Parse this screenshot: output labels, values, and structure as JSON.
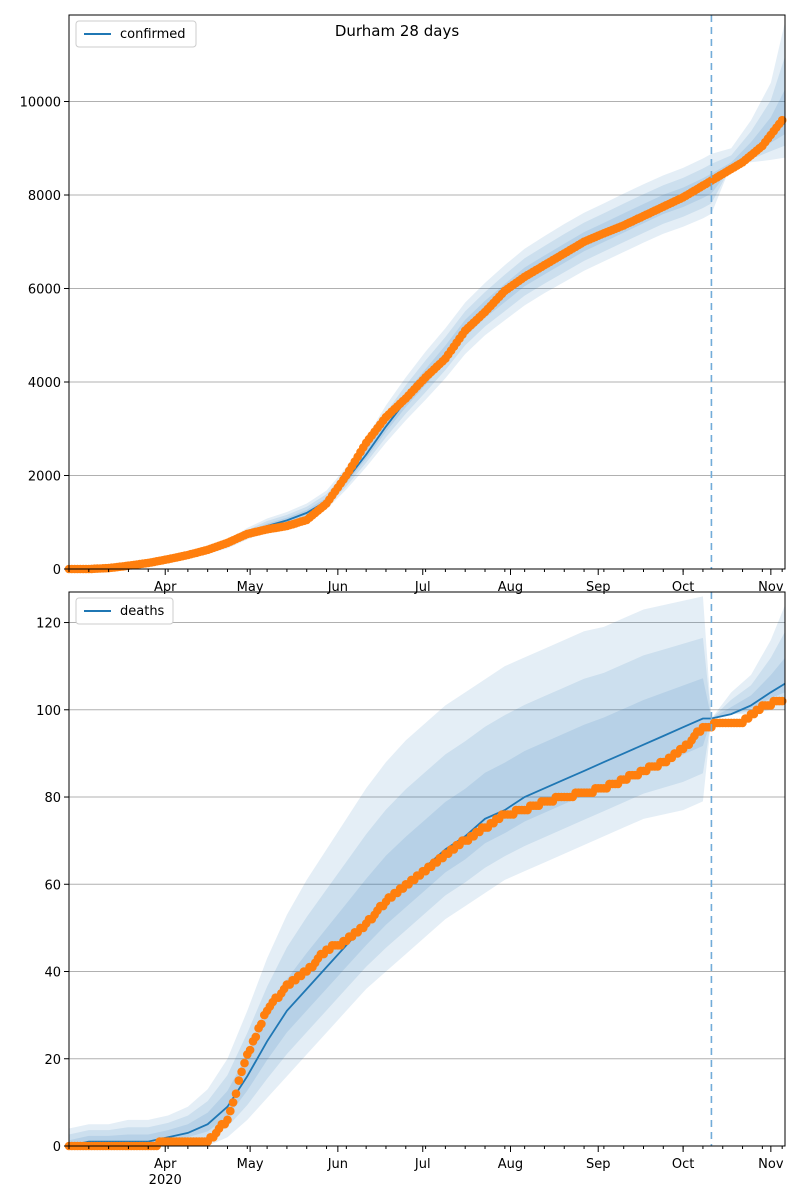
{
  "chart_data": [
    {
      "type": "line",
      "title": "Durham 28 days",
      "legend": "confirmed",
      "legend_position": "top-left",
      "grid": "y",
      "x_date_range": [
        "2020-02-27",
        "2020-11-06"
      ],
      "ylim": [
        0,
        11850
      ],
      "yticks": [
        0,
        2000,
        4000,
        6000,
        8000,
        10000
      ],
      "xticks": [
        {
          "date": "2020-04-01",
          "label": "Apr"
        },
        {
          "date": "2020-05-01",
          "label": "May"
        },
        {
          "date": "2020-06-01",
          "label": "Jun"
        },
        {
          "date": "2020-07-01",
          "label": "Jul"
        },
        {
          "date": "2020-08-01",
          "label": "Aug"
        },
        {
          "date": "2020-09-01",
          "label": "Sep"
        },
        {
          "date": "2020-10-01",
          "label": "Oct"
        },
        {
          "date": "2020-11-01",
          "label": "Nov"
        }
      ],
      "xtick_sublabel": "2020",
      "forecast_start": "2020-10-11",
      "model": {
        "dates": [
          "2020-02-27",
          "2020-03-05",
          "2020-03-12",
          "2020-03-19",
          "2020-03-26",
          "2020-04-02",
          "2020-04-09",
          "2020-04-16",
          "2020-04-23",
          "2020-04-30",
          "2020-05-07",
          "2020-05-14",
          "2020-05-21",
          "2020-05-28",
          "2020-06-04",
          "2020-06-11",
          "2020-06-18",
          "2020-06-25",
          "2020-07-02",
          "2020-07-09",
          "2020-07-16",
          "2020-07-23",
          "2020-07-30",
          "2020-08-06",
          "2020-08-13",
          "2020-08-20",
          "2020-08-27",
          "2020-09-03",
          "2020-09-10",
          "2020-09-17",
          "2020-09-24",
          "2020-10-01",
          "2020-10-08",
          "2020-10-11",
          "2020-10-18",
          "2020-10-25",
          "2020-11-01",
          "2020-11-06"
        ],
        "values": [
          0,
          5,
          20,
          60,
          110,
          190,
          280,
          380,
          520,
          740,
          920,
          1040,
          1200,
          1450,
          1900,
          2450,
          3050,
          3600,
          4100,
          4600,
          5150,
          5550,
          5900,
          6250,
          6500,
          6750,
          7000,
          7200,
          7400,
          7600,
          7800,
          7950,
          8150,
          8250,
          8550,
          8900,
          9300,
          9550
        ]
      },
      "bands": [
        {
          "lower": [
            0,
            0,
            10,
            40,
            80,
            150,
            230,
            320,
            440,
            630,
            800,
            920,
            1060,
            1280,
            1700,
            2180,
            2700,
            3180,
            3620,
            4080,
            4600,
            5000,
            5320,
            5640,
            5900,
            6140,
            6380,
            6580,
            6780,
            6980,
            7170,
            7320,
            7500,
            7600,
            8650,
            8700,
            8750,
            8800
          ]
        },
        {
          "upper": [
            10,
            15,
            35,
            90,
            150,
            240,
            340,
            460,
            620,
            880,
            1080,
            1220,
            1400,
            1680,
            2180,
            2800,
            3500,
            4100,
            4650,
            5150,
            5700,
            6120,
            6500,
            6850,
            7120,
            7380,
            7620,
            7820,
            8030,
            8230,
            8420,
            8580,
            8780,
            8880,
            9000,
            9600,
            10400,
            11700
          ]
        }
      ],
      "points": {
        "dates": [
          "2020-02-27",
          "2020-03-05",
          "2020-03-12",
          "2020-03-19",
          "2020-03-26",
          "2020-04-02",
          "2020-04-09",
          "2020-04-16",
          "2020-04-23",
          "2020-04-30",
          "2020-05-07",
          "2020-05-14",
          "2020-05-21",
          "2020-05-28",
          "2020-06-04",
          "2020-06-11",
          "2020-06-18",
          "2020-06-25",
          "2020-07-02",
          "2020-07-09",
          "2020-07-16",
          "2020-07-23",
          "2020-07-30",
          "2020-08-06",
          "2020-08-13",
          "2020-08-20",
          "2020-08-27",
          "2020-09-03",
          "2020-09-10",
          "2020-09-17",
          "2020-09-24",
          "2020-10-01",
          "2020-10-08",
          "2020-10-15",
          "2020-10-22",
          "2020-10-29",
          "2020-11-05"
        ],
        "values": [
          0,
          0,
          20,
          70,
          130,
          210,
          300,
          410,
          560,
          750,
          850,
          920,
          1050,
          1400,
          2000,
          2700,
          3250,
          3650,
          4100,
          4500,
          5100,
          5500,
          5950,
          6250,
          6500,
          6750,
          7000,
          7180,
          7350,
          7550,
          7750,
          7950,
          8200,
          8450,
          8700,
          9050,
          9600
        ]
      }
    },
    {
      "type": "line",
      "legend": "deaths",
      "legend_position": "top-left",
      "grid": "y",
      "x_date_range": [
        "2020-02-27",
        "2020-11-06"
      ],
      "ylim": [
        0,
        127
      ],
      "yticks": [
        0,
        20,
        40,
        60,
        80,
        100,
        120
      ],
      "xticks": [
        {
          "date": "2020-04-01",
          "label": "Apr"
        },
        {
          "date": "2020-05-01",
          "label": "May"
        },
        {
          "date": "2020-06-01",
          "label": "Jun"
        },
        {
          "date": "2020-07-01",
          "label": "Jul"
        },
        {
          "date": "2020-08-01",
          "label": "Aug"
        },
        {
          "date": "2020-09-01",
          "label": "Sep"
        },
        {
          "date": "2020-10-01",
          "label": "Oct"
        },
        {
          "date": "2020-11-01",
          "label": "Nov"
        }
      ],
      "xtick_sublabel": "2020",
      "forecast_start": "2020-10-11",
      "model": {
        "dates": [
          "2020-02-27",
          "2020-03-05",
          "2020-03-12",
          "2020-03-19",
          "2020-03-26",
          "2020-04-02",
          "2020-04-09",
          "2020-04-16",
          "2020-04-23",
          "2020-04-30",
          "2020-05-07",
          "2020-05-14",
          "2020-05-21",
          "2020-05-28",
          "2020-06-04",
          "2020-06-11",
          "2020-06-18",
          "2020-06-25",
          "2020-07-02",
          "2020-07-09",
          "2020-07-16",
          "2020-07-23",
          "2020-07-30",
          "2020-08-06",
          "2020-08-13",
          "2020-08-20",
          "2020-08-27",
          "2020-09-03",
          "2020-09-10",
          "2020-09-17",
          "2020-09-24",
          "2020-10-01",
          "2020-10-08",
          "2020-10-11",
          "2020-10-18",
          "2020-10-25",
          "2020-11-01",
          "2020-11-06"
        ],
        "values": [
          0,
          1,
          1,
          1,
          1,
          2,
          3,
          5,
          9,
          16,
          24,
          31,
          36,
          41,
          46,
          51,
          56,
          60,
          64,
          68,
          71,
          75,
          77,
          80,
          82,
          84,
          86,
          88,
          90,
          92,
          94,
          96,
          98,
          98,
          99,
          101,
          104,
          106
        ]
      },
      "bands": [
        {
          "lower": [
            0,
            0,
            0,
            0,
            0,
            0,
            0,
            0,
            2,
            6,
            11,
            16,
            21,
            26,
            31,
            36,
            40,
            44,
            48,
            52,
            55,
            58,
            61,
            63,
            65,
            67,
            69,
            71,
            73,
            75,
            76,
            77,
            79,
            98,
            99,
            99,
            100,
            100
          ]
        },
        {
          "upper": [
            4,
            5,
            5,
            6,
            6,
            7,
            9,
            13,
            20,
            31,
            43,
            53,
            61,
            68,
            75,
            82,
            88,
            93,
            97,
            101,
            104,
            107,
            110,
            112,
            114,
            116,
            118,
            119,
            121,
            123,
            124,
            125,
            126,
            98,
            104,
            108,
            116,
            124
          ]
        }
      ],
      "points": {
        "dates": [
          "2020-02-27",
          "2020-03-05",
          "2020-03-12",
          "2020-03-19",
          "2020-03-26",
          "2020-04-02",
          "2020-04-09",
          "2020-04-16",
          "2020-04-23",
          "2020-04-30",
          "2020-05-07",
          "2020-05-14",
          "2020-05-21",
          "2020-05-28",
          "2020-06-04",
          "2020-06-11",
          "2020-06-18",
          "2020-06-25",
          "2020-07-02",
          "2020-07-09",
          "2020-07-16",
          "2020-07-23",
          "2020-07-30",
          "2020-08-06",
          "2020-08-13",
          "2020-08-20",
          "2020-08-27",
          "2020-09-03",
          "2020-09-10",
          "2020-09-17",
          "2020-09-24",
          "2020-10-01",
          "2020-10-08",
          "2020-10-15",
          "2020-10-22",
          "2020-10-29",
          "2020-11-05"
        ],
        "values": [
          0,
          0,
          0,
          0,
          0,
          1,
          1,
          1,
          6,
          21,
          31,
          37,
          40,
          45,
          47,
          51,
          56,
          60,
          63,
          67,
          70,
          73,
          76,
          77,
          79,
          80,
          81,
          82,
          84,
          86,
          88,
          91,
          96,
          97,
          97,
          101,
          102
        ]
      }
    }
  ]
}
